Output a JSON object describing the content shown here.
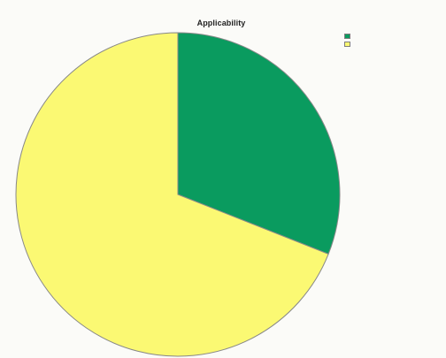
{
  "chart_data": {
    "type": "pie",
    "title": "Applicability",
    "slices": [
      {
        "value": 31,
        "color": "#0a9b5f"
      },
      {
        "value": 69,
        "color": "#fbf973"
      }
    ],
    "start_angle_deg": 0,
    "direction": "clockwise",
    "outline_color": "#888888",
    "legend_position": "top-right"
  }
}
